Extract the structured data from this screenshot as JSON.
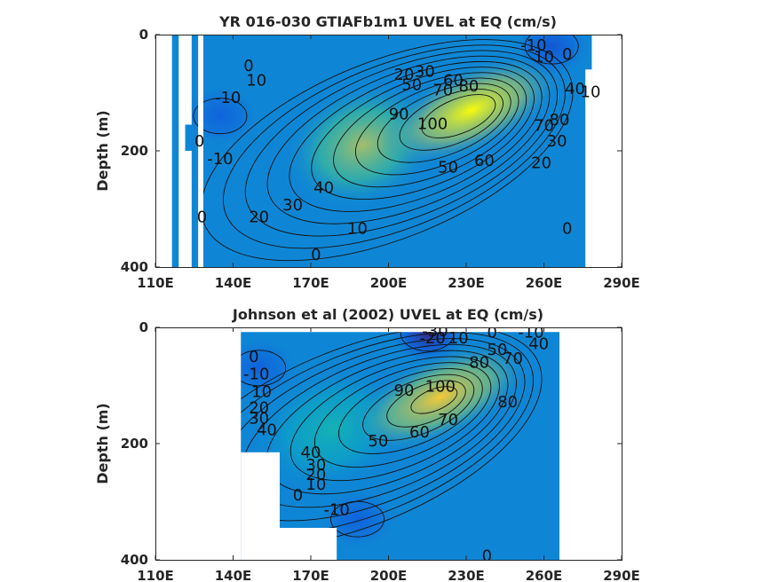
{
  "chart_data": [
    {
      "type": "heatmap",
      "title": "YR 016-030 GTIAFb1m1 UVEL at EQ (cm/s)",
      "xlabel": "",
      "ylabel": "Depth (m)",
      "x_ticks": [
        "110E",
        "140E",
        "170E",
        "200E",
        "230E",
        "260E",
        "290E"
      ],
      "y_ticks": [
        "0",
        "200",
        "400"
      ],
      "xlim": [
        110,
        290
      ],
      "ylim": [
        400,
        0
      ],
      "colormap": "parula",
      "clim": [
        -30,
        110
      ],
      "field": {
        "core": {
          "lon": 232,
          "depth": 130,
          "value": 110
        },
        "west_undercurrent": {
          "lon": 190,
          "depth": 190,
          "value": 75
        },
        "negative_regions": [
          {
            "lon": 135,
            "depth": 140,
            "value": -10
          },
          {
            "lon": 263,
            "depth": 20,
            "value": -15
          }
        ]
      },
      "masks": [
        {
          "lon": [
            110,
            116.4
          ],
          "depth": [
            0,
            400
          ]
        },
        {
          "lon": [
            119,
            121.5
          ],
          "depth": [
            0,
            400
          ]
        },
        {
          "lon": [
            121.5,
            124
          ],
          "depth": [
            0,
            155
          ]
        },
        {
          "lon": [
            121.5,
            124
          ],
          "depth": [
            200,
            400
          ]
        },
        {
          "lon": [
            126.5,
            128.5
          ],
          "depth": [
            0,
            400
          ]
        },
        {
          "lon": [
            278.5,
            290
          ],
          "depth": [
            0,
            400
          ]
        },
        {
          "lon": [
            276,
            278.5
          ],
          "depth": [
            60,
            400
          ]
        }
      ],
      "contour_levels": [
        -10,
        0,
        10,
        20,
        30,
        40,
        50,
        60,
        70,
        80,
        90,
        100
      ],
      "contour_labels": [
        {
          "text": "0",
          "lon": 146,
          "depth": 55
        },
        {
          "text": "-10",
          "lon": 138,
          "depth": 110
        },
        {
          "text": "10",
          "lon": 149,
          "depth": 80
        },
        {
          "text": "0",
          "lon": 127,
          "depth": 185
        },
        {
          "text": "-10",
          "lon": 135,
          "depth": 215
        },
        {
          "text": "0",
          "lon": 128,
          "depth": 315
        },
        {
          "text": "20",
          "lon": 150,
          "depth": 315
        },
        {
          "text": "30",
          "lon": 163,
          "depth": 295
        },
        {
          "text": "40",
          "lon": 175,
          "depth": 265
        },
        {
          "text": "10",
          "lon": 188,
          "depth": 335
        },
        {
          "text": "0",
          "lon": 172,
          "depth": 380
        },
        {
          "text": "20",
          "lon": 206,
          "depth": 70
        },
        {
          "text": "30",
          "lon": 214,
          "depth": 65
        },
        {
          "text": "50",
          "lon": 209,
          "depth": 88
        },
        {
          "text": "60",
          "lon": 225,
          "depth": 80
        },
        {
          "text": "70",
          "lon": 221,
          "depth": 97
        },
        {
          "text": "80",
          "lon": 231,
          "depth": 90
        },
        {
          "text": "90",
          "lon": 204,
          "depth": 138
        },
        {
          "text": "100",
          "lon": 217,
          "depth": 155
        },
        {
          "text": "-10",
          "lon": 256,
          "depth": 20
        },
        {
          "text": "10",
          "lon": 260,
          "depth": 40
        },
        {
          "text": "0",
          "lon": 269,
          "depth": 35
        },
        {
          "text": "40",
          "lon": 272,
          "depth": 95
        },
        {
          "text": "10",
          "lon": 278,
          "depth": 100
        },
        {
          "text": "70",
          "lon": 260,
          "depth": 158
        },
        {
          "text": "80",
          "lon": 266,
          "depth": 148
        },
        {
          "text": "30",
          "lon": 265,
          "depth": 185
        },
        {
          "text": "20",
          "lon": 259,
          "depth": 222
        },
        {
          "text": "50",
          "lon": 223,
          "depth": 230
        },
        {
          "text": "60",
          "lon": 237,
          "depth": 218
        },
        {
          "text": "0",
          "lon": 269,
          "depth": 335
        }
      ]
    },
    {
      "type": "heatmap",
      "title": "Johnson et al (2002) UVEL at EQ (cm/s)",
      "xlabel": "",
      "ylabel": "Depth (m)",
      "x_ticks": [
        "110E",
        "140E",
        "170E",
        "200E",
        "230E",
        "260E",
        "290E"
      ],
      "y_ticks": [
        "0",
        "200",
        "400"
      ],
      "xlim": [
        110,
        290
      ],
      "ylim": [
        400,
        0
      ],
      "colormap": "parula",
      "clim": [
        -30,
        110
      ],
      "field": {
        "core": {
          "lon": 220,
          "depth": 120,
          "value": 100
        },
        "west_undercurrent": {
          "lon": 178,
          "depth": 175,
          "value": 40
        },
        "negative_regions": [
          {
            "lon": 150,
            "depth": 70,
            "value": -10
          },
          {
            "lon": 215,
            "depth": 10,
            "value": -30
          },
          {
            "lon": 188,
            "depth": 330,
            "value": -10
          }
        ]
      },
      "masks": [
        {
          "lon": [
            110,
            143
          ],
          "depth": [
            0,
            400
          ]
        },
        {
          "lon": [
            143,
            158
          ],
          "depth": [
            215,
            400
          ]
        },
        {
          "lon": [
            158,
            180
          ],
          "depth": [
            345,
            400
          ]
        },
        {
          "lon": [
            266,
            290
          ],
          "depth": [
            0,
            400
          ]
        },
        {
          "lon": [
            143,
            266
          ],
          "depth": [
            0,
            8
          ]
        }
      ],
      "contour_levels": [
        -30,
        -20,
        -10,
        0,
        10,
        20,
        30,
        40,
        50,
        60,
        70,
        80,
        90,
        100
      ],
      "contour_labels": [
        {
          "text": "-30",
          "lon": 218,
          "depth": 8
        },
        {
          "text": "-20",
          "lon": 217,
          "depth": 20
        },
        {
          "text": "10",
          "lon": 227,
          "depth": 20
        },
        {
          "text": "0",
          "lon": 240,
          "depth": 10
        },
        {
          "text": "-10",
          "lon": 255,
          "depth": 10
        },
        {
          "text": "50",
          "lon": 242,
          "depth": 40
        },
        {
          "text": "40",
          "lon": 258,
          "depth": 30
        },
        {
          "text": "70",
          "lon": 248,
          "depth": 55
        },
        {
          "text": "80",
          "lon": 235,
          "depth": 62
        },
        {
          "text": "0",
          "lon": 148,
          "depth": 52
        },
        {
          "text": "-10",
          "lon": 149,
          "depth": 82
        },
        {
          "text": "10",
          "lon": 151,
          "depth": 112
        },
        {
          "text": "20",
          "lon": 150,
          "depth": 140
        },
        {
          "text": "30",
          "lon": 150,
          "depth": 158
        },
        {
          "text": "40",
          "lon": 153,
          "depth": 178
        },
        {
          "text": "90",
          "lon": 206,
          "depth": 110
        },
        {
          "text": "100",
          "lon": 220,
          "depth": 103
        },
        {
          "text": "70",
          "lon": 223,
          "depth": 160
        },
        {
          "text": "80",
          "lon": 246,
          "depth": 130
        },
        {
          "text": "60",
          "lon": 212,
          "depth": 182
        },
        {
          "text": "50",
          "lon": 196,
          "depth": 197
        },
        {
          "text": "40",
          "lon": 170,
          "depth": 217
        },
        {
          "text": "30",
          "lon": 172,
          "depth": 238
        },
        {
          "text": "20",
          "lon": 172,
          "depth": 255
        },
        {
          "text": "10",
          "lon": 172,
          "depth": 272
        },
        {
          "text": "0",
          "lon": 165,
          "depth": 290
        },
        {
          "text": "-10",
          "lon": 180,
          "depth": 315
        },
        {
          "text": "0",
          "lon": 238,
          "depth": 395
        }
      ]
    }
  ]
}
